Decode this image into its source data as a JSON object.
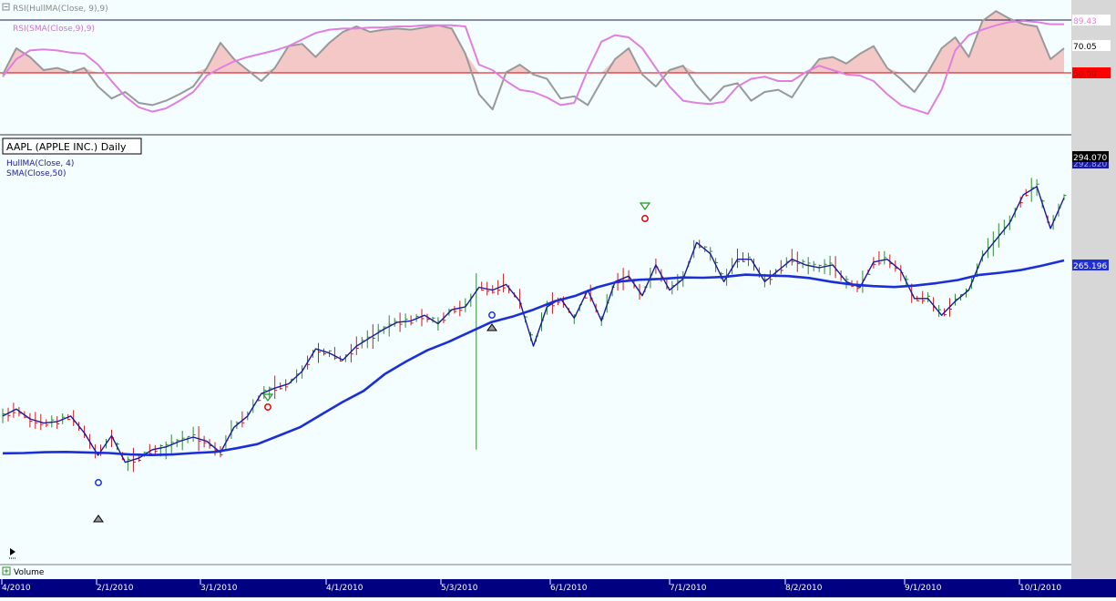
{
  "chart_data": [
    {
      "panel": "rsi",
      "type": "line",
      "series": [
        {
          "name": "RSI(HullMA(Close, 9),9)",
          "color": "#999999",
          "values": [
            46,
            70,
            62,
            50,
            52,
            48,
            52,
            35,
            24,
            30,
            20,
            18,
            22,
            28,
            35,
            52,
            75,
            60,
            50,
            40,
            52,
            72,
            74,
            62,
            75,
            85,
            90,
            85,
            87,
            88,
            87,
            89,
            91,
            88,
            65,
            28,
            14,
            48,
            55,
            46,
            42,
            24,
            26,
            18,
            40,
            60,
            70,
            46,
            35,
            50,
            54,
            36,
            22,
            35,
            38,
            22,
            30,
            32,
            25,
            44,
            60,
            62,
            56,
            65,
            72,
            52,
            42,
            30,
            48,
            70,
            80,
            62,
            95,
            104,
            97,
            92,
            90,
            60,
            70
          ]
        },
        {
          "name": "RSI(SMA(Close,9),9)",
          "color": "#e07fe0",
          "values": [
            44,
            60,
            68,
            69,
            68,
            66,
            65,
            55,
            40,
            26,
            16,
            12,
            15,
            22,
            30,
            45,
            52,
            58,
            62,
            65,
            68,
            72,
            78,
            84,
            87,
            88,
            88,
            89,
            89,
            90,
            90,
            91,
            91,
            91,
            90,
            55,
            50,
            40,
            32,
            30,
            25,
            18,
            20,
            50,
            76,
            82,
            80,
            70,
            52,
            35,
            22,
            20,
            19,
            21,
            35,
            42,
            44,
            40,
            40,
            48,
            54,
            50,
            46,
            45,
            40,
            28,
            18,
            14,
            10,
            32,
            68,
            82,
            87,
            91,
            94,
            95,
            94,
            92,
            92
          ]
        }
      ],
      "yticks": [
        89.43,
        70.05,
        50
      ]
    },
    {
      "panel": "price",
      "type": "line",
      "title": "AAPL (APPLE INC.) Daily",
      "legend": [
        "HullMA(Close, 4)",
        "SMA(Close,50)"
      ],
      "series": [
        {
          "name": "HullMA(Close, 4)",
          "color": "#1a1aa0",
          "values": [
            210,
            212.5,
            209,
            207.5,
            208,
            210,
            204,
            196,
            203,
            193.5,
            195,
            198,
            199,
            201,
            202.5,
            201,
            197,
            206,
            210,
            218,
            220,
            221.5,
            226,
            234,
            232.5,
            230,
            235,
            238,
            241,
            243.5,
            244,
            246,
            243,
            248,
            249,
            256,
            255,
            257,
            251,
            235,
            249,
            252,
            245,
            255,
            244,
            258,
            260,
            253,
            264,
            255,
            259,
            272,
            268,
            258,
            266,
            266,
            258,
            262,
            266,
            264,
            263,
            264,
            258,
            256,
            265,
            266,
            262,
            252,
            252,
            246,
            251,
            255,
            267,
            273,
            279,
            289,
            292,
            277,
            288
          ]
        },
        {
          "name": "SMA(Close,50)",
          "color": "#1a2fd6",
          "values": [
            196.7,
            196.8,
            197.1,
            197.2,
            197,
            196.8,
            196.3,
            196.1,
            196.3,
            196.8,
            197.2,
            198.5,
            200,
            203,
            206,
            210.5,
            215,
            219,
            225,
            229.5,
            233.5,
            236.5,
            240,
            243.5,
            245.5,
            248,
            251,
            253,
            256,
            258,
            258.7,
            259,
            259.5,
            259.4,
            259.7,
            260.5,
            260.2,
            260,
            259.3,
            258,
            257,
            256.4,
            256.1,
            256.6,
            257.5,
            258.6,
            260.4,
            261.2,
            262.2,
            263.8,
            265.6
          ]
        }
      ],
      "x_labels": [
        "4/2010",
        "2/1/2010",
        "3/1/2010",
        "4/1/2010",
        "5/3/2010",
        "6/1/2010",
        "7/1/2010",
        "8/2/2010",
        "9/1/2010",
        "10/1/2010"
      ],
      "price_tags": [
        {
          "label": "294.070",
          "value": 294.07,
          "bg": "#000000",
          "fg": "#ffffff"
        },
        {
          "label": "292.820",
          "value": 292.82,
          "bg": "#1a1aa0",
          "fg": "#9aa0ff"
        },
        {
          "label": "265.196",
          "value": 265.196,
          "bg": "#1f2fd6",
          "fg": "#ffffff"
        }
      ]
    }
  ],
  "rsi_tags": [
    {
      "label": "89.43",
      "bg": "#ffffff",
      "fg": "#e07fe0"
    },
    {
      "label": "70.05",
      "bg": "#ffffff",
      "fg": "#000000"
    },
    {
      "label": "50.00",
      "bg": "#ff0000",
      "fg": "#9b1515"
    }
  ],
  "bottom_panel": {
    "label": "Volume"
  },
  "colors": {
    "background": "#f4fdff",
    "rsi_fill": "#f5c8c8",
    "up_bar": "#2f8a2f",
    "down_bar": "#d21a1a",
    "axis_bar": "#000080",
    "right_gutter": "#d7d7d7"
  }
}
